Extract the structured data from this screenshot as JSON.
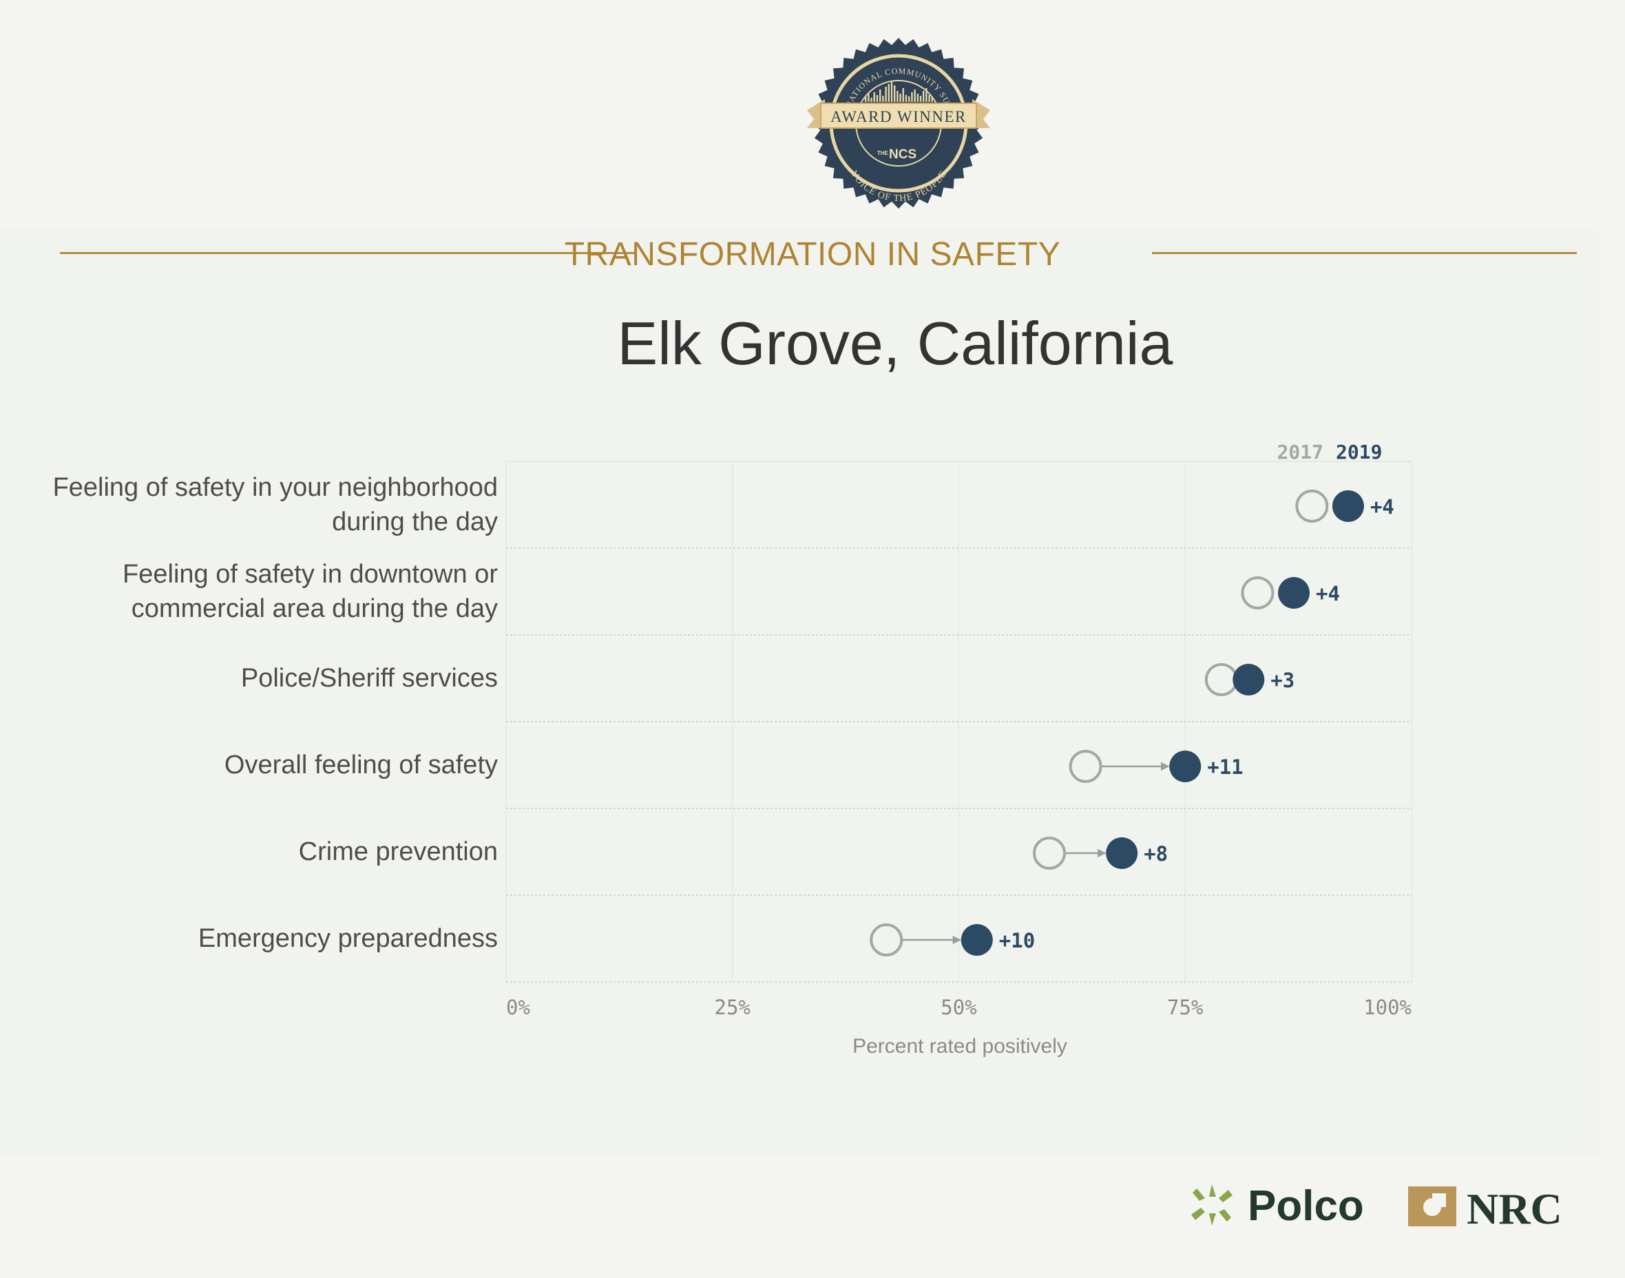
{
  "header": {
    "kicker": "TRANSFORMATION IN SAFETY",
    "title": "Elk Grove, California"
  },
  "badge": {
    "arc_top": "THE NATIONAL COMMUNITY SURVEY",
    "ribbon": "AWARD WINNER",
    "mark_small": "THE",
    "mark": "NCS",
    "arc_bottom": "VOICE OF THE PEOPLE"
  },
  "legend": {
    "year_old": "2017",
    "year_new": "2019"
  },
  "colors": {
    "accent": "#b08333",
    "old_marker": "#a3a8a0",
    "new_marker": "#2c4a64",
    "label_text": "#4d4d4d",
    "axis_text": "#8a8a8a"
  },
  "chart_data": {
    "type": "scatter",
    "xlabel": "Percent rated positively",
    "xlim": [
      0,
      100
    ],
    "xticks": [
      "0%",
      "25%",
      "50%",
      "75%",
      "100%"
    ],
    "grid": true,
    "legend": "top-right",
    "categories": [
      [
        "Feeling of safety in your neighborhood",
        "during the day"
      ],
      [
        "Feeling of safety in downtown or",
        "commercial area during the day"
      ],
      [
        "Police/Sheriff services"
      ],
      [
        "Overall feeling of safety"
      ],
      [
        "Crime prevention"
      ],
      [
        "Emergency preparedness"
      ]
    ],
    "series": [
      {
        "name": "2017",
        "values": [
          89,
          83,
          79,
          64,
          60,
          42
        ]
      },
      {
        "name": "2019",
        "values": [
          93,
          87,
          82,
          75,
          68,
          52
        ]
      }
    ],
    "change_labels": [
      "+4",
      "+4",
      "+3",
      "+11",
      "+8",
      "+10"
    ]
  },
  "footer": {
    "brand_1": "Polco",
    "brand_2": "NRC"
  }
}
